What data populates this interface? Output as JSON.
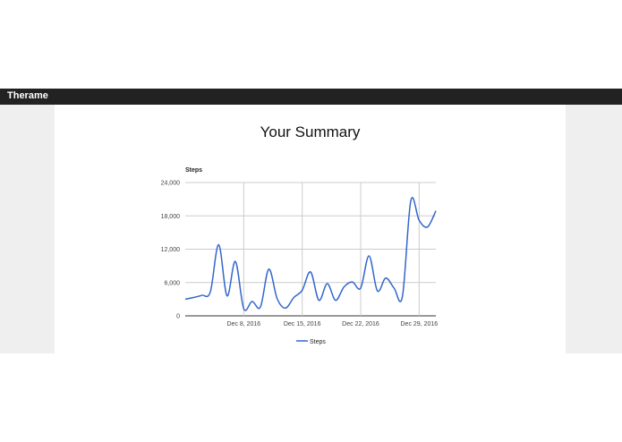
{
  "navbar": {
    "brand": "Therame",
    "background": "#222222"
  },
  "main": {
    "title": "Your Summary"
  },
  "chart_data": {
    "type": "line",
    "series_label": "Steps",
    "color": "#3366cc",
    "ylim": [
      0,
      24000
    ],
    "y_ticks": [
      {
        "value": 0,
        "label": "0"
      },
      {
        "value": 6000,
        "label": "6,000"
      },
      {
        "value": 12000,
        "label": "12,000"
      },
      {
        "value": 18000,
        "label": "18,000"
      },
      {
        "value": 24000,
        "label": "24,000"
      }
    ],
    "x_ticks": [
      {
        "label": "Dec 8, 2016",
        "day": 7
      },
      {
        "label": "Dec 15, 2016",
        "day": 14
      },
      {
        "label": "Dec 22, 2016",
        "day": 21
      },
      {
        "label": "Dec 29, 2016",
        "day": 28
      }
    ],
    "dates": [
      "Dec 1",
      "Dec 2",
      "Dec 3",
      "Dec 4",
      "Dec 5",
      "Dec 6",
      "Dec 7",
      "Dec 8",
      "Dec 9",
      "Dec 10",
      "Dec 11",
      "Dec 12",
      "Dec 13",
      "Dec 14",
      "Dec 15",
      "Dec 16",
      "Dec 17",
      "Dec 18",
      "Dec 19",
      "Dec 20",
      "Dec 21",
      "Dec 22",
      "Dec 23",
      "Dec 24",
      "Dec 25",
      "Dec 26",
      "Dec 27",
      "Dec 28",
      "Dec 29",
      "Dec 30",
      "Dec 31"
    ],
    "values": [
      3000,
      3300,
      3700,
      4300,
      12800,
      3600,
      9800,
      1300,
      2600,
      1600,
      8400,
      3100,
      1400,
      3300,
      4600,
      7900,
      2800,
      5800,
      2800,
      5200,
      6100,
      5000,
      10800,
      4500,
      6800,
      5000,
      3500,
      20700,
      17200,
      16000,
      18900
    ],
    "series": [
      {
        "name": "Steps"
      }
    ],
    "legend": "bottom"
  }
}
